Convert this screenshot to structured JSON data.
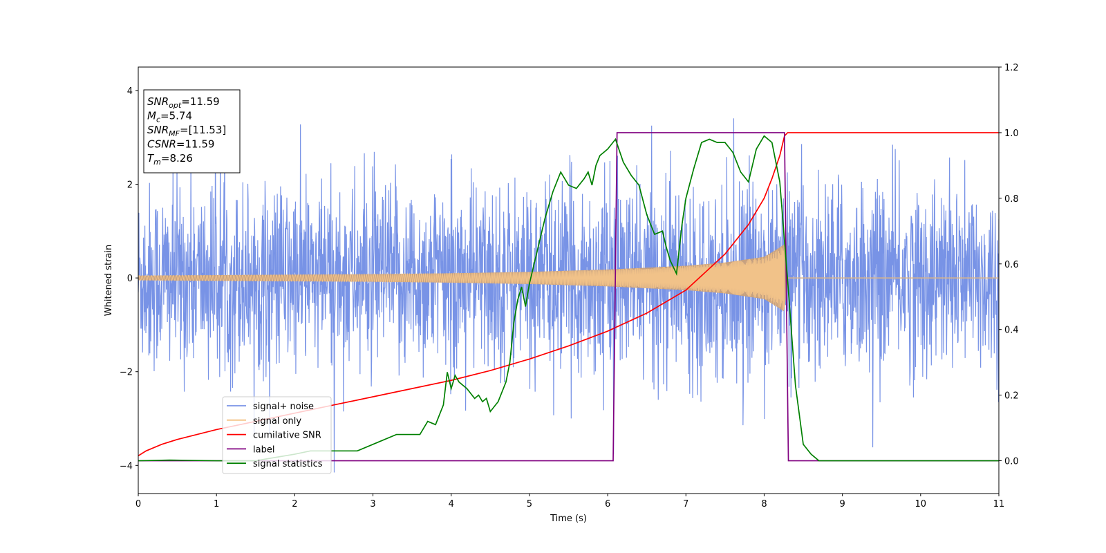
{
  "chart_data": {
    "type": "line",
    "xlabel": "Time (s)",
    "ylabel": "Whitened strain",
    "xlim": [
      0,
      11
    ],
    "ylim_left": [
      -4.6,
      4.5
    ],
    "ylim_right": [
      -0.1,
      1.2
    ],
    "xticks": [
      "0",
      "1",
      "2",
      "3",
      "4",
      "5",
      "6",
      "7",
      "8",
      "9",
      "10",
      "11"
    ],
    "yticks_left": [
      "−4",
      "−2",
      "0",
      "2",
      "4"
    ],
    "yticks_left_values": [
      -4,
      -2,
      0,
      2,
      4
    ],
    "yticks_right": [
      "0.0",
      "0.2",
      "0.4",
      "0.6",
      "0.8",
      "1.0",
      "1.2"
    ],
    "yticks_right_values": [
      0.0,
      0.2,
      0.4,
      0.6,
      0.8,
      1.0,
      1.2
    ],
    "legend_position": "lower-left",
    "annotation": {
      "lines": [
        {
          "base": "SNR",
          "sub": "opt",
          "value": "=11.59"
        },
        {
          "base": "M",
          "sub": "c",
          "value": "=5.74"
        },
        {
          "base": "SNR",
          "sub": "MF",
          "value": "=[11.53]"
        },
        {
          "base": "CSNR",
          "sub": "",
          "value": "=11.59"
        },
        {
          "base": "T",
          "sub": "m",
          "value": "=8.26"
        }
      ]
    },
    "series": [
      {
        "name": "signal+ noise",
        "axis": "left",
        "color": "#7893e6",
        "description_values": {
          "noise_std": 1.0,
          "peak_max": 4.15,
          "peak_min": -4.15,
          "t_end": 11.0
        }
      },
      {
        "name": "signal only",
        "axis": "left",
        "color": "#f5c58a",
        "envelope": {
          "x": [
            0,
            1,
            2,
            3,
            4,
            5,
            6,
            7,
            7.5,
            8,
            8.15,
            8.26,
            8.3,
            11
          ],
          "y": [
            0.05,
            0.06,
            0.07,
            0.08,
            0.1,
            0.13,
            0.18,
            0.26,
            0.33,
            0.45,
            0.6,
            0.72,
            0.0,
            0.0
          ]
        }
      },
      {
        "name": "cumilative SNR",
        "axis": "right",
        "color": "#ff0000",
        "x": [
          0,
          0.1,
          0.3,
          0.5,
          1,
          1.5,
          2,
          2.5,
          3,
          3.5,
          4,
          4.5,
          5,
          5.5,
          6,
          6.5,
          7,
          7.5,
          7.8,
          8.0,
          8.1,
          8.2,
          8.26,
          8.3,
          8.4,
          9,
          10,
          11
        ],
        "y": [
          0.015,
          0.03,
          0.05,
          0.065,
          0.095,
          0.12,
          0.145,
          0.17,
          0.195,
          0.22,
          0.245,
          0.275,
          0.31,
          0.35,
          0.395,
          0.45,
          0.52,
          0.63,
          0.72,
          0.8,
          0.86,
          0.93,
          0.99,
          1.0,
          1.0,
          1.0,
          1.0,
          1.0
        ]
      },
      {
        "name": "label",
        "axis": "right",
        "color": "#800080",
        "x": [
          0,
          6.07,
          6.12,
          8.26,
          8.31,
          11
        ],
        "y": [
          0,
          0,
          1,
          1,
          0,
          0
        ]
      },
      {
        "name": "signal statistics",
        "axis": "right",
        "color": "#008000",
        "x": [
          0,
          0.4,
          1,
          1.5,
          2,
          2.2,
          2.4,
          2.6,
          2.8,
          3.0,
          3.1,
          3.3,
          3.4,
          3.6,
          3.7,
          3.8,
          3.9,
          3.95,
          4.0,
          4.05,
          4.1,
          4.2,
          4.3,
          4.35,
          4.4,
          4.45,
          4.5,
          4.6,
          4.7,
          4.75,
          4.8,
          4.85,
          4.9,
          4.95,
          5.0,
          5.1,
          5.2,
          5.3,
          5.4,
          5.5,
          5.6,
          5.7,
          5.75,
          5.8,
          5.85,
          5.9,
          6.0,
          6.1,
          6.2,
          6.3,
          6.4,
          6.5,
          6.6,
          6.7,
          6.75,
          6.8,
          6.88,
          6.95,
          7.0,
          7.1,
          7.2,
          7.3,
          7.4,
          7.5,
          7.6,
          7.7,
          7.8,
          7.9,
          8.0,
          8.1,
          8.2,
          8.3,
          8.4,
          8.5,
          8.6,
          8.7,
          9,
          11
        ],
        "y": [
          0.0,
          0.002,
          0.0,
          0.0,
          0.02,
          0.03,
          0.03,
          0.03,
          0.03,
          0.05,
          0.06,
          0.08,
          0.08,
          0.08,
          0.12,
          0.11,
          0.17,
          0.27,
          0.22,
          0.26,
          0.24,
          0.22,
          0.19,
          0.2,
          0.18,
          0.19,
          0.15,
          0.18,
          0.24,
          0.3,
          0.42,
          0.49,
          0.53,
          0.47,
          0.54,
          0.64,
          0.74,
          0.82,
          0.88,
          0.84,
          0.83,
          0.86,
          0.88,
          0.84,
          0.9,
          0.93,
          0.95,
          0.98,
          0.91,
          0.87,
          0.84,
          0.75,
          0.69,
          0.7,
          0.65,
          0.61,
          0.57,
          0.72,
          0.8,
          0.89,
          0.97,
          0.98,
          0.97,
          0.97,
          0.94,
          0.88,
          0.85,
          0.95,
          0.99,
          0.97,
          0.85,
          0.55,
          0.23,
          0.05,
          0.02,
          0.0,
          0.0,
          0.0
        ]
      }
    ]
  }
}
